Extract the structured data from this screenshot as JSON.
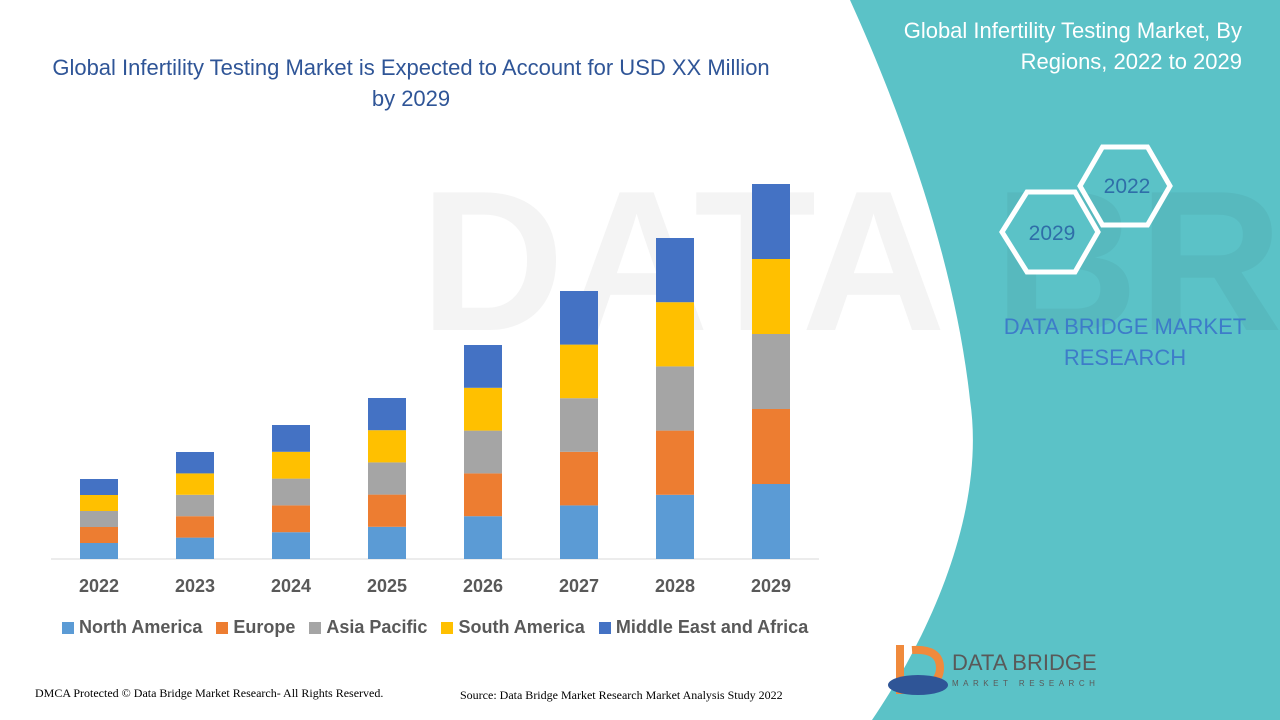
{
  "chart_data": {
    "type": "stacked-bar",
    "title": "Global Infertility Testing Market is Expected to Account for USD XX Million by 2029",
    "categories": [
      "2022",
      "2023",
      "2024",
      "2025",
      "2026",
      "2027",
      "2028",
      "2029"
    ],
    "series": [
      {
        "name": "North America",
        "color": "#5b9bd5",
        "values": [
          1.6,
          2.14,
          2.68,
          3.22,
          4.28,
          5.36,
          6.42,
          7.5
        ]
      },
      {
        "name": "Europe",
        "color": "#ed7d31",
        "values": [
          1.6,
          2.14,
          2.68,
          3.22,
          4.28,
          5.36,
          6.42,
          7.5
        ]
      },
      {
        "name": "Asia Pacific",
        "color": "#a5a5a5",
        "values": [
          1.6,
          2.14,
          2.68,
          3.22,
          4.28,
          5.36,
          6.42,
          7.5
        ]
      },
      {
        "name": "South America",
        "color": "#ffc000",
        "values": [
          1.6,
          2.14,
          2.68,
          3.22,
          4.28,
          5.36,
          6.42,
          7.5
        ]
      },
      {
        "name": "Middle East and Africa",
        "color": "#4472c4",
        "values": [
          1.6,
          2.14,
          2.68,
          3.22,
          4.28,
          5.36,
          6.42,
          7.5
        ]
      }
    ],
    "ylim": [
      0,
      40
    ]
  },
  "side_panel": {
    "title": "Global Infertility Testing Market, By Regions, 2022 to 2029",
    "hex_labels": [
      "2022",
      "2029"
    ],
    "brand": "DATA BRIDGE MARKET RESEARCH"
  },
  "logo": {
    "name": "DATA BRIDGE",
    "tagline": "MARKET RESEARCH"
  },
  "footer": {
    "copyright": "DMCA Protected © Data Bridge Market Research- All Rights Reserved.",
    "source": "Source: Data Bridge Market Research Market Analysis Study 2022"
  }
}
